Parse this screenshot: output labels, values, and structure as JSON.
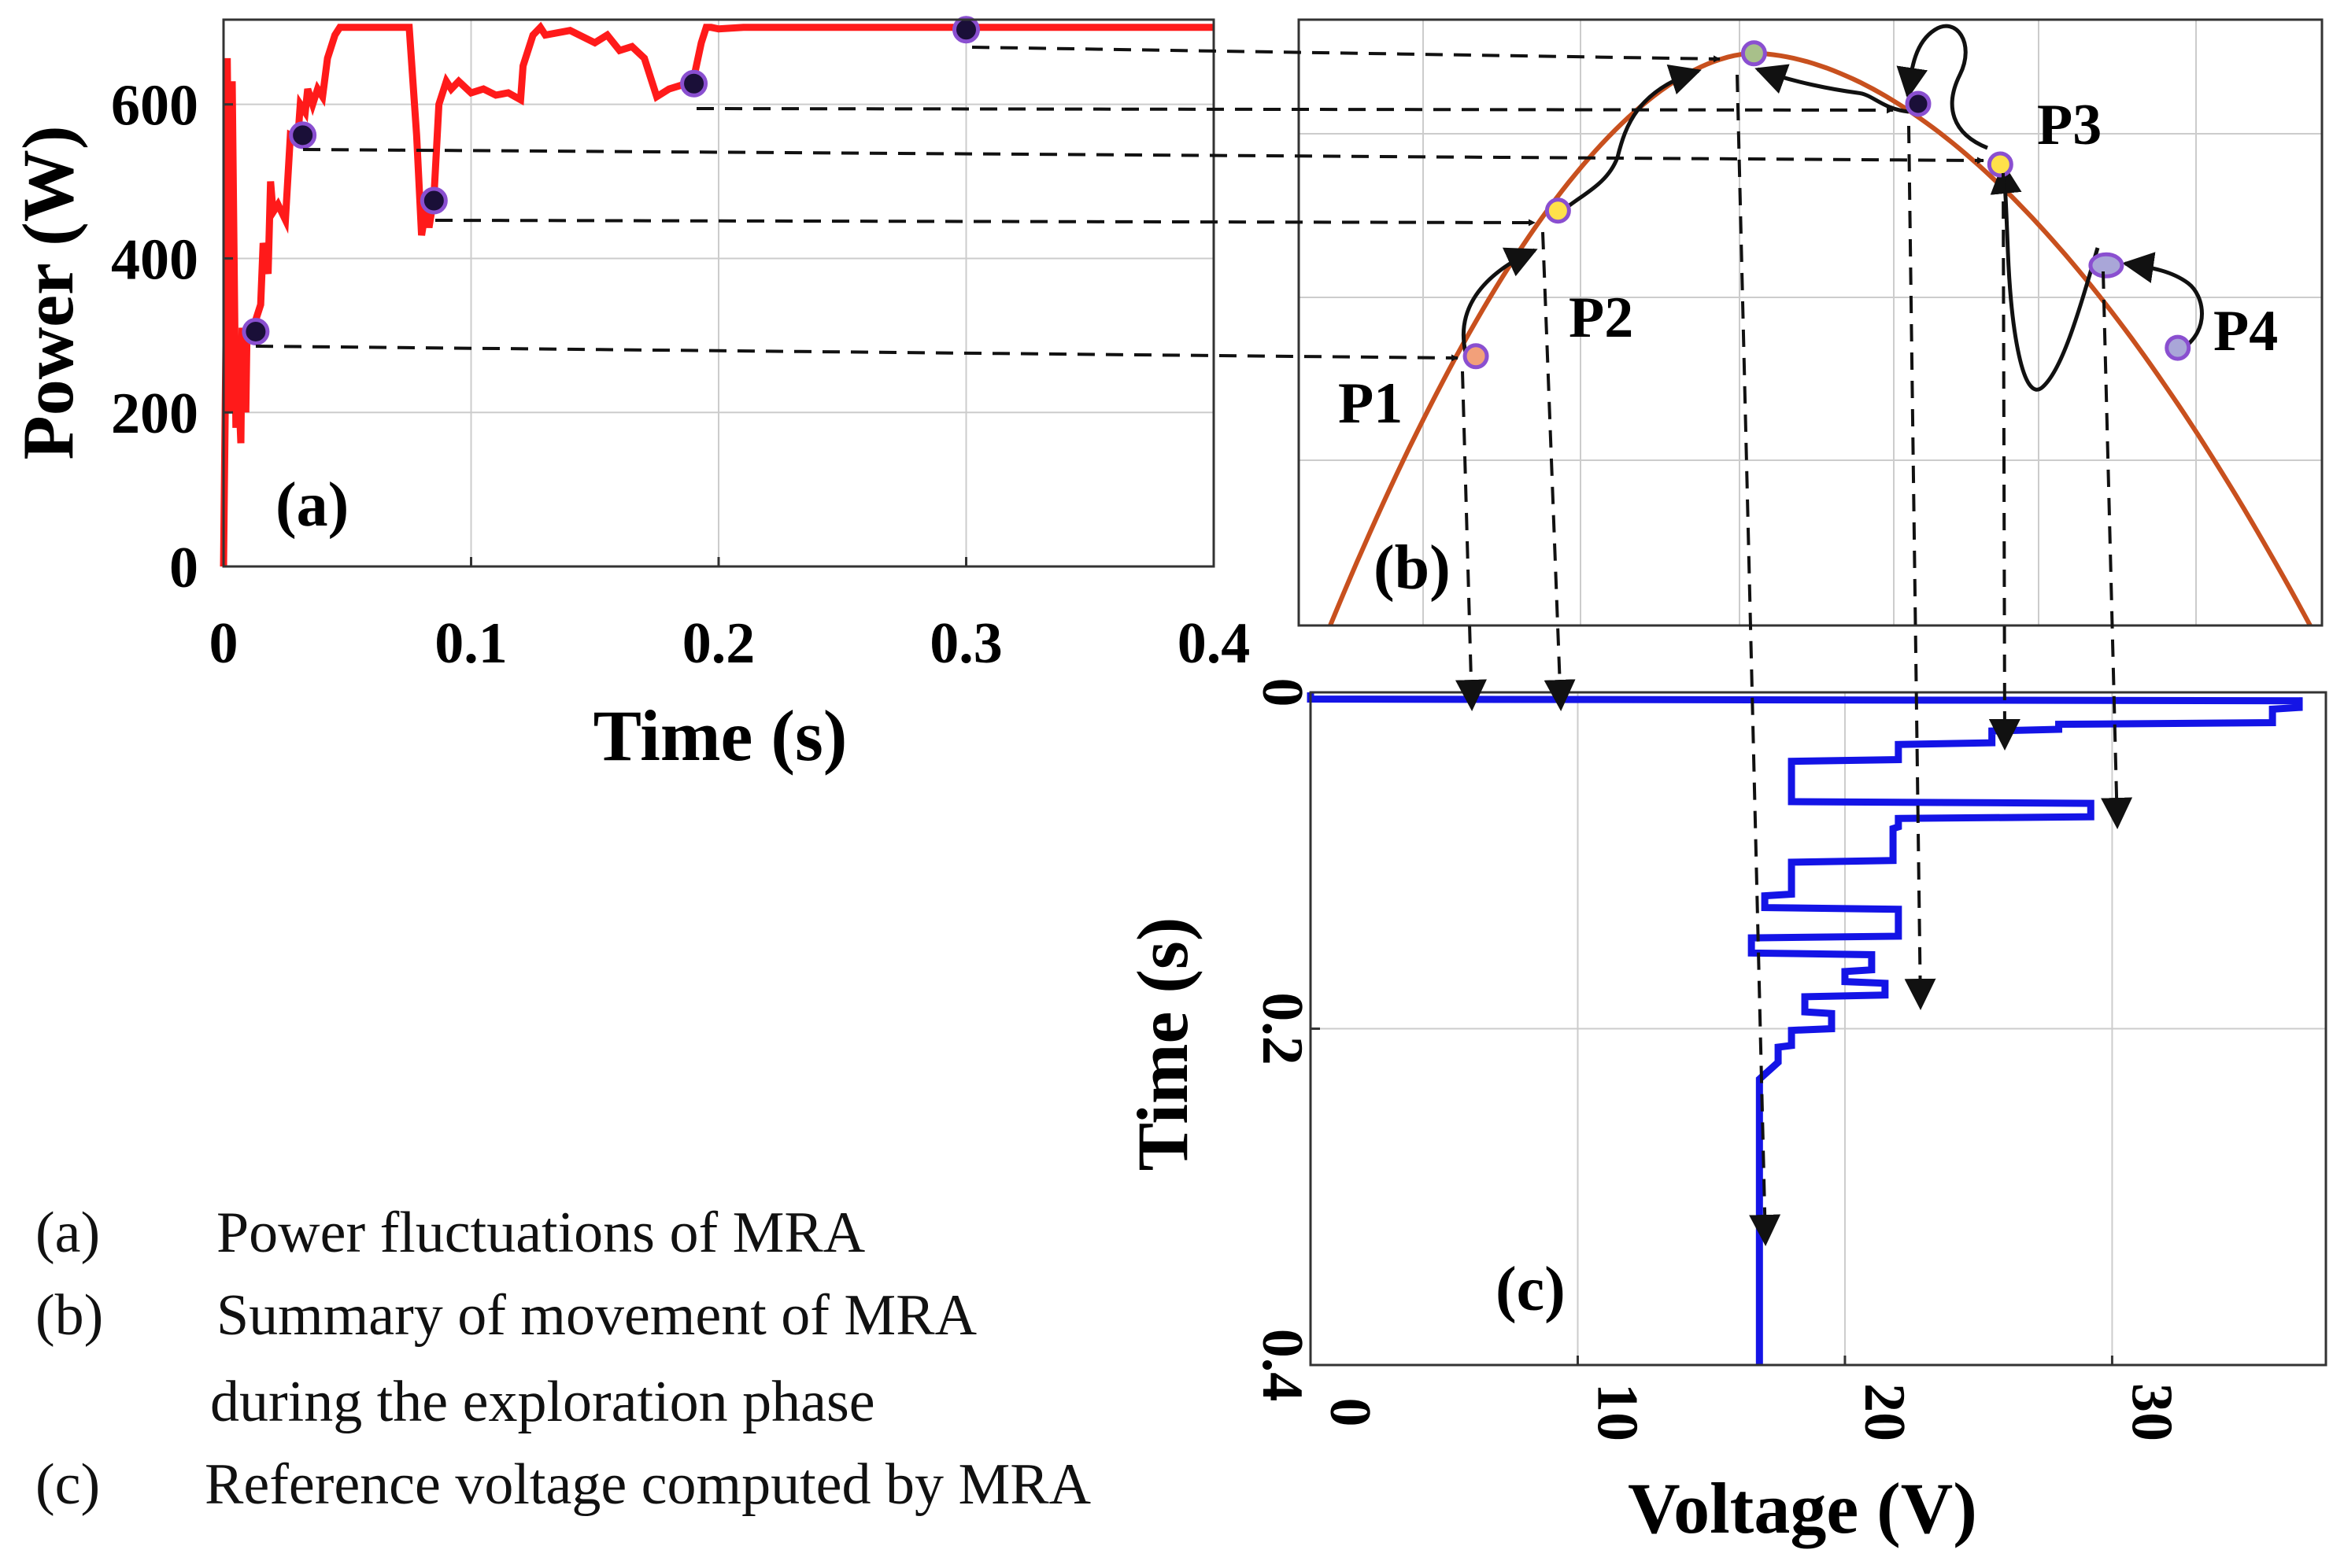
{
  "colors": {
    "power_line": "#ff1a1a",
    "pv_curve": "#c8501e",
    "voltage_line": "#1414e6",
    "grid": "#cccccc",
    "axis": "#333333",
    "marker_dark": "#1a0f38",
    "marker_edge": "#8a4fd0",
    "marker_orange": "#f2a07a",
    "marker_yellow": "#ffe14a",
    "marker_green": "#a8c08a",
    "marker_lavender": "#a9a6d8"
  },
  "captions": [
    {
      "label": "(a)",
      "text": "Power fluctuations of MRA"
    },
    {
      "label": "(b)",
      "text": "Summary of movement of MRA",
      "text2": "during the exploration phase"
    },
    {
      "label": "(c)",
      "text": "Reference voltage computed by MRA"
    }
  ],
  "chart_data": [
    {
      "id": "a",
      "type": "line",
      "panel_label": "(a)",
      "xlabel": "Time (s)",
      "ylabel": "Power (W)",
      "xlim": [
        0,
        0.4
      ],
      "ylim": [
        0,
        710
      ],
      "xticks": [
        0,
        0.1,
        0.2,
        0.3,
        0.4
      ],
      "xtick_labels": [
        "0",
        "0.1",
        "0.2",
        "0.3",
        "0.4"
      ],
      "yticks": [
        0,
        200,
        400,
        600
      ],
      "ytick_labels": [
        "0",
        "200",
        "400",
        "600"
      ],
      "grid": true,
      "series": [
        {
          "name": "Power",
          "x": [
            0,
            0.001,
            0.0015,
            0.003,
            0.0035,
            0.005,
            0.0055,
            0.007,
            0.0075,
            0.009,
            0.0095,
            0.011,
            0.012,
            0.015,
            0.016,
            0.018,
            0.019,
            0.02,
            0.022,
            0.025,
            0.027,
            0.03,
            0.031,
            0.033,
            0.034,
            0.036,
            0.038,
            0.04,
            0.042,
            0.045,
            0.047,
            0.05,
            0.055,
            0.06,
            0.065,
            0.07,
            0.075,
            0.078,
            0.08,
            0.082,
            0.083,
            0.085,
            0.087,
            0.09,
            0.092,
            0.095,
            0.1,
            0.105,
            0.11,
            0.115,
            0.12,
            0.121,
            0.125,
            0.128,
            0.13,
            0.14,
            0.15,
            0.155,
            0.16,
            0.165,
            0.17,
            0.175,
            0.18,
            0.185,
            0.19,
            0.193,
            0.195,
            0.197,
            0.2,
            0.21,
            0.25,
            0.3,
            0.35,
            0.4
          ],
          "values": [
            0,
            300,
            660,
            200,
            630,
            180,
            280,
            160,
            310,
            200,
            310,
            290,
            310,
            340,
            420,
            380,
            500,
            460,
            470,
            450,
            560,
            555,
            600,
            590,
            620,
            600,
            620,
            610,
            660,
            690,
            700,
            700,
            700,
            700,
            700,
            700,
            700,
            560,
            430,
            470,
            440,
            480,
            600,
            630,
            620,
            630,
            615,
            620,
            612,
            615,
            606,
            650,
            690,
            700,
            690,
            696,
            680,
            690,
            670,
            675,
            660,
            610,
            620,
            625,
            635,
            680,
            700,
            700,
            698,
            700,
            700,
            700,
            700,
            700
          ]
        }
      ],
      "markers": [
        {
          "x": 0.013,
          "y": 305
        },
        {
          "x": 0.032,
          "y": 560
        },
        {
          "x": 0.085,
          "y": 475
        },
        {
          "x": 0.19,
          "y": 627
        },
        {
          "x": 0.3,
          "y": 697
        }
      ]
    },
    {
      "id": "b",
      "type": "line",
      "panel_label": "(b)",
      "xlim": [
        0,
        37
      ],
      "ylim": [
        0,
        720
      ],
      "grid": true,
      "series": [
        {
          "name": "P-V curve",
          "x_peak": 16,
          "y_peak": 680,
          "x_zero": [
            0,
            37
          ]
        }
      ],
      "point_labels": [
        "P1",
        "P2",
        "P3",
        "P4"
      ],
      "markers": [
        {
          "x": 5.5,
          "y": 320,
          "style": "orange",
          "label": "P1"
        },
        {
          "x": 8.6,
          "y": 493,
          "style": "yellow",
          "label": "P2"
        },
        {
          "x": 16,
          "y": 680,
          "style": "green"
        },
        {
          "x": 22.2,
          "y": 620,
          "style": "dark"
        },
        {
          "x": 25.3,
          "y": 548,
          "style": "yellow",
          "label": "P3"
        },
        {
          "x": 29.3,
          "y": 428,
          "style": "lavender"
        },
        {
          "x": 32.0,
          "y": 330,
          "style": "lavender",
          "label": "P4"
        }
      ]
    },
    {
      "id": "c",
      "type": "line",
      "panel_label": "(c)",
      "xlabel": "Voltage (V)",
      "ylabel": "Time (s)",
      "xlim": [
        0,
        38
      ],
      "ylim": [
        0,
        0.4
      ],
      "xticks": [
        0,
        10,
        20,
        30
      ],
      "xtick_labels": [
        "0",
        "10",
        "20",
        "30"
      ],
      "yticks": [
        0,
        0.2,
        0.4
      ],
      "ytick_labels": [
        "0",
        "0.2",
        "0.4"
      ],
      "grid": true,
      "series": [
        {
          "name": "Reference voltage",
          "t": [
            0,
            0.004,
            0.005,
            0.009,
            0.01,
            0.018,
            0.019,
            0.022,
            0.023,
            0.03,
            0.031,
            0.04,
            0.041,
            0.05,
            0.051,
            0.065,
            0.066,
            0.074,
            0.075,
            0.08,
            0.081,
            0.1,
            0.101,
            0.12,
            0.121,
            0.128,
            0.129,
            0.145,
            0.146,
            0.155,
            0.156,
            0.165,
            0.166,
            0.172,
            0.173,
            0.18,
            0.181,
            0.19,
            0.191,
            0.2,
            0.201,
            0.21,
            0.211,
            0.22,
            0.23,
            0.4
          ],
          "v": [
            0,
            0,
            37,
            37,
            36,
            36,
            28,
            28,
            25.5,
            25.5,
            22,
            22,
            18,
            18,
            18,
            18,
            29.2,
            29.2,
            22,
            22,
            21.8,
            21.8,
            18,
            18,
            17,
            17,
            22,
            22,
            16.5,
            16.5,
            21,
            21,
            20,
            20,
            21.5,
            21.5,
            18.5,
            18.5,
            19.5,
            19.5,
            18,
            18,
            17.5,
            17.5,
            16.8,
            16.8
          ]
        }
      ]
    }
  ]
}
